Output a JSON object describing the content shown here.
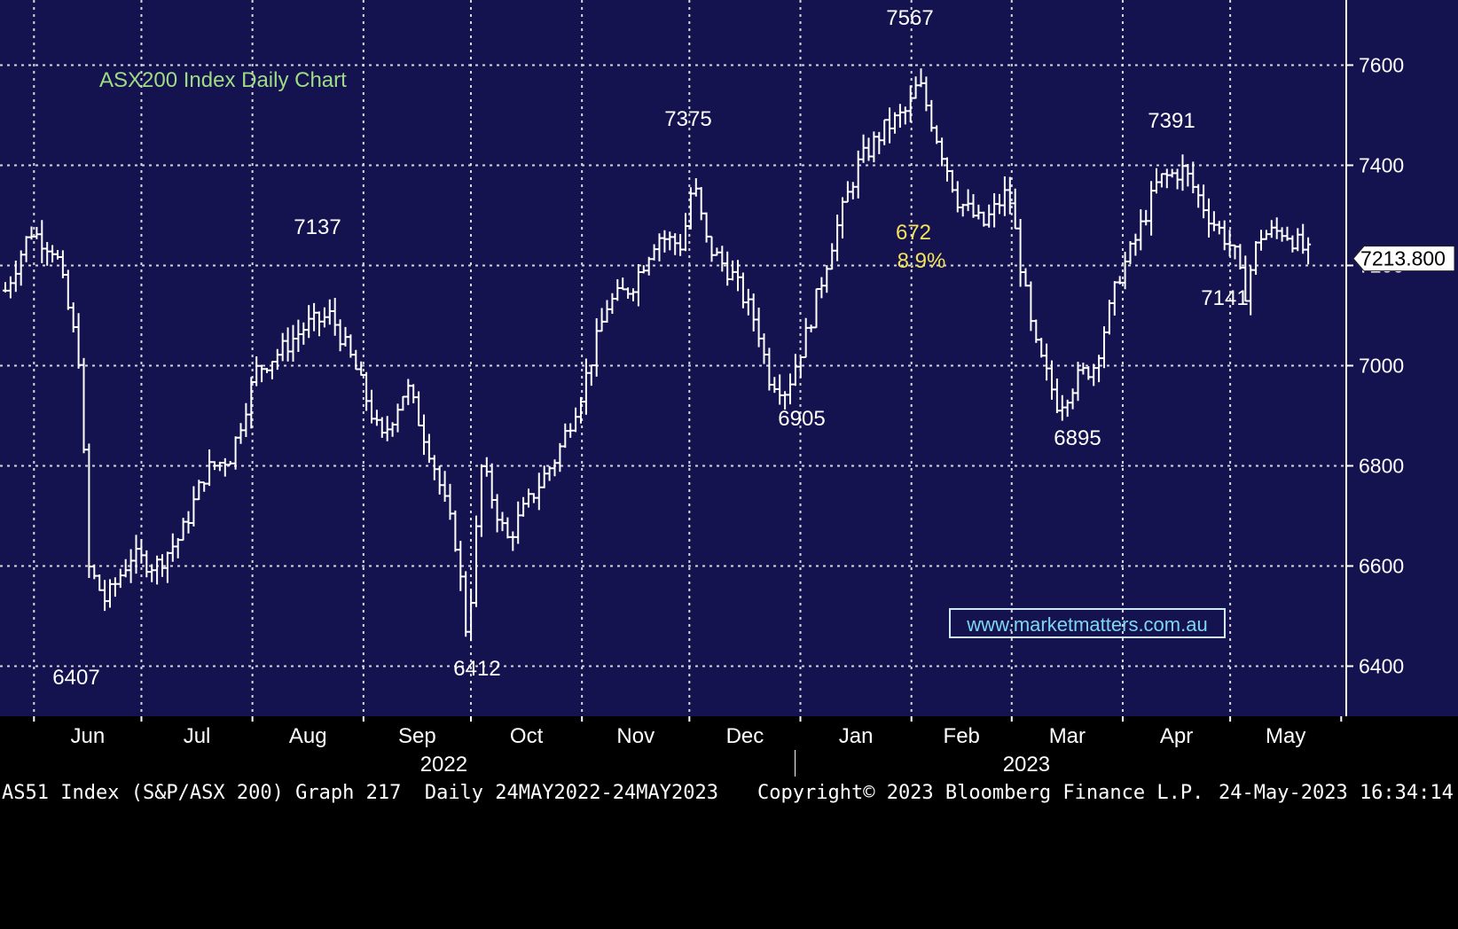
{
  "chart_data": {
    "type": "line",
    "style": "ohlc-bars",
    "title": "ASX200 Index Daily Chart",
    "ticker": "AS51 Index",
    "xlabel": "",
    "ylabel": "",
    "ylim": [
      6300,
      7730
    ],
    "yticks": [
      6400,
      6600,
      6800,
      7000,
      7200,
      7400,
      7600
    ],
    "ytick_labels": [
      "6400",
      "6600",
      "6800",
      "7000",
      "7200",
      "7400",
      "7600"
    ],
    "months": [
      "Jun",
      "Jul",
      "Aug",
      "Sep",
      "Oct",
      "Nov",
      "Dec",
      "Jan",
      "Feb",
      "Mar",
      "Apr",
      "May"
    ],
    "years": [
      "2022",
      "2023"
    ],
    "grid": true,
    "last_price": "7213.800",
    "annotations": [
      "6407",
      "7137",
      "6412",
      "7375",
      "6905",
      "7567",
      "672",
      "8.9%",
      "6895",
      "7391",
      "7141"
    ],
    "x": [
      "2022-05-24",
      "2022-05-31",
      "2022-06-07",
      "2022-06-14",
      "2022-06-16",
      "2022-06-21",
      "2022-06-28",
      "2022-07-05",
      "2022-07-12",
      "2022-07-19",
      "2022-07-26",
      "2022-08-02",
      "2022-08-09",
      "2022-08-16",
      "2022-08-23",
      "2022-08-30",
      "2022-09-06",
      "2022-09-13",
      "2022-09-20",
      "2022-09-27",
      "2022-09-30",
      "2022-10-04",
      "2022-10-11",
      "2022-10-18",
      "2022-10-25",
      "2022-11-01",
      "2022-11-08",
      "2022-11-15",
      "2022-11-22",
      "2022-11-29",
      "2022-12-02",
      "2022-12-06",
      "2022-12-13",
      "2022-12-20",
      "2022-12-23",
      "2022-12-28",
      "2023-01-03",
      "2023-01-10",
      "2023-01-17",
      "2023-01-24",
      "2023-01-31",
      "2023-02-03",
      "2023-02-07",
      "2023-02-14",
      "2023-02-21",
      "2023-02-28",
      "2023-03-07",
      "2023-03-14",
      "2023-03-20",
      "2023-03-24",
      "2023-03-31",
      "2023-04-04",
      "2023-04-11",
      "2023-04-18",
      "2023-04-25",
      "2023-05-02",
      "2023-05-05",
      "2023-05-09",
      "2023-05-16",
      "2023-05-24"
    ],
    "series": [
      {
        "name": "",
        "values": [
          7150,
          7270,
          7230,
          7000,
          6600,
          6530,
          6620,
          6600,
          6660,
          6790,
          6820,
          6990,
          7030,
          7080,
          7100,
          6990,
          6850,
          6960,
          6820,
          6640,
          6450,
          6800,
          6650,
          6740,
          6820,
          6950,
          7120,
          7160,
          7260,
          7240,
          7370,
          7240,
          7180,
          7080,
          6980,
          6950,
          7070,
          7250,
          7400,
          7470,
          7510,
          7567,
          7480,
          7330,
          7280,
          7350,
          7050,
          6920,
          6980,
          7000,
          7180,
          7240,
          7370,
          7391,
          7300,
          7230,
          7141,
          7260,
          7270,
          7213.8
        ]
      }
    ]
  },
  "watermark": "www.marketmatters.com.au",
  "footer": {
    "left": "AS51 Index (S&P/ASX 200) Graph 217  Daily 24MAY2022-24MAY2023",
    "middle": "Copyright© 2023 Bloomberg Finance L.P.",
    "right": "24-May-2023 16:34:14"
  },
  "colors": {
    "plot_bg": "#141350",
    "axis_bg": "#000000",
    "price": "#ffffff",
    "grid": "#d8d8d8",
    "title": "#9fdc84",
    "annotation_highlight": "#f2e25a",
    "watermark": "#7fd6f0"
  }
}
